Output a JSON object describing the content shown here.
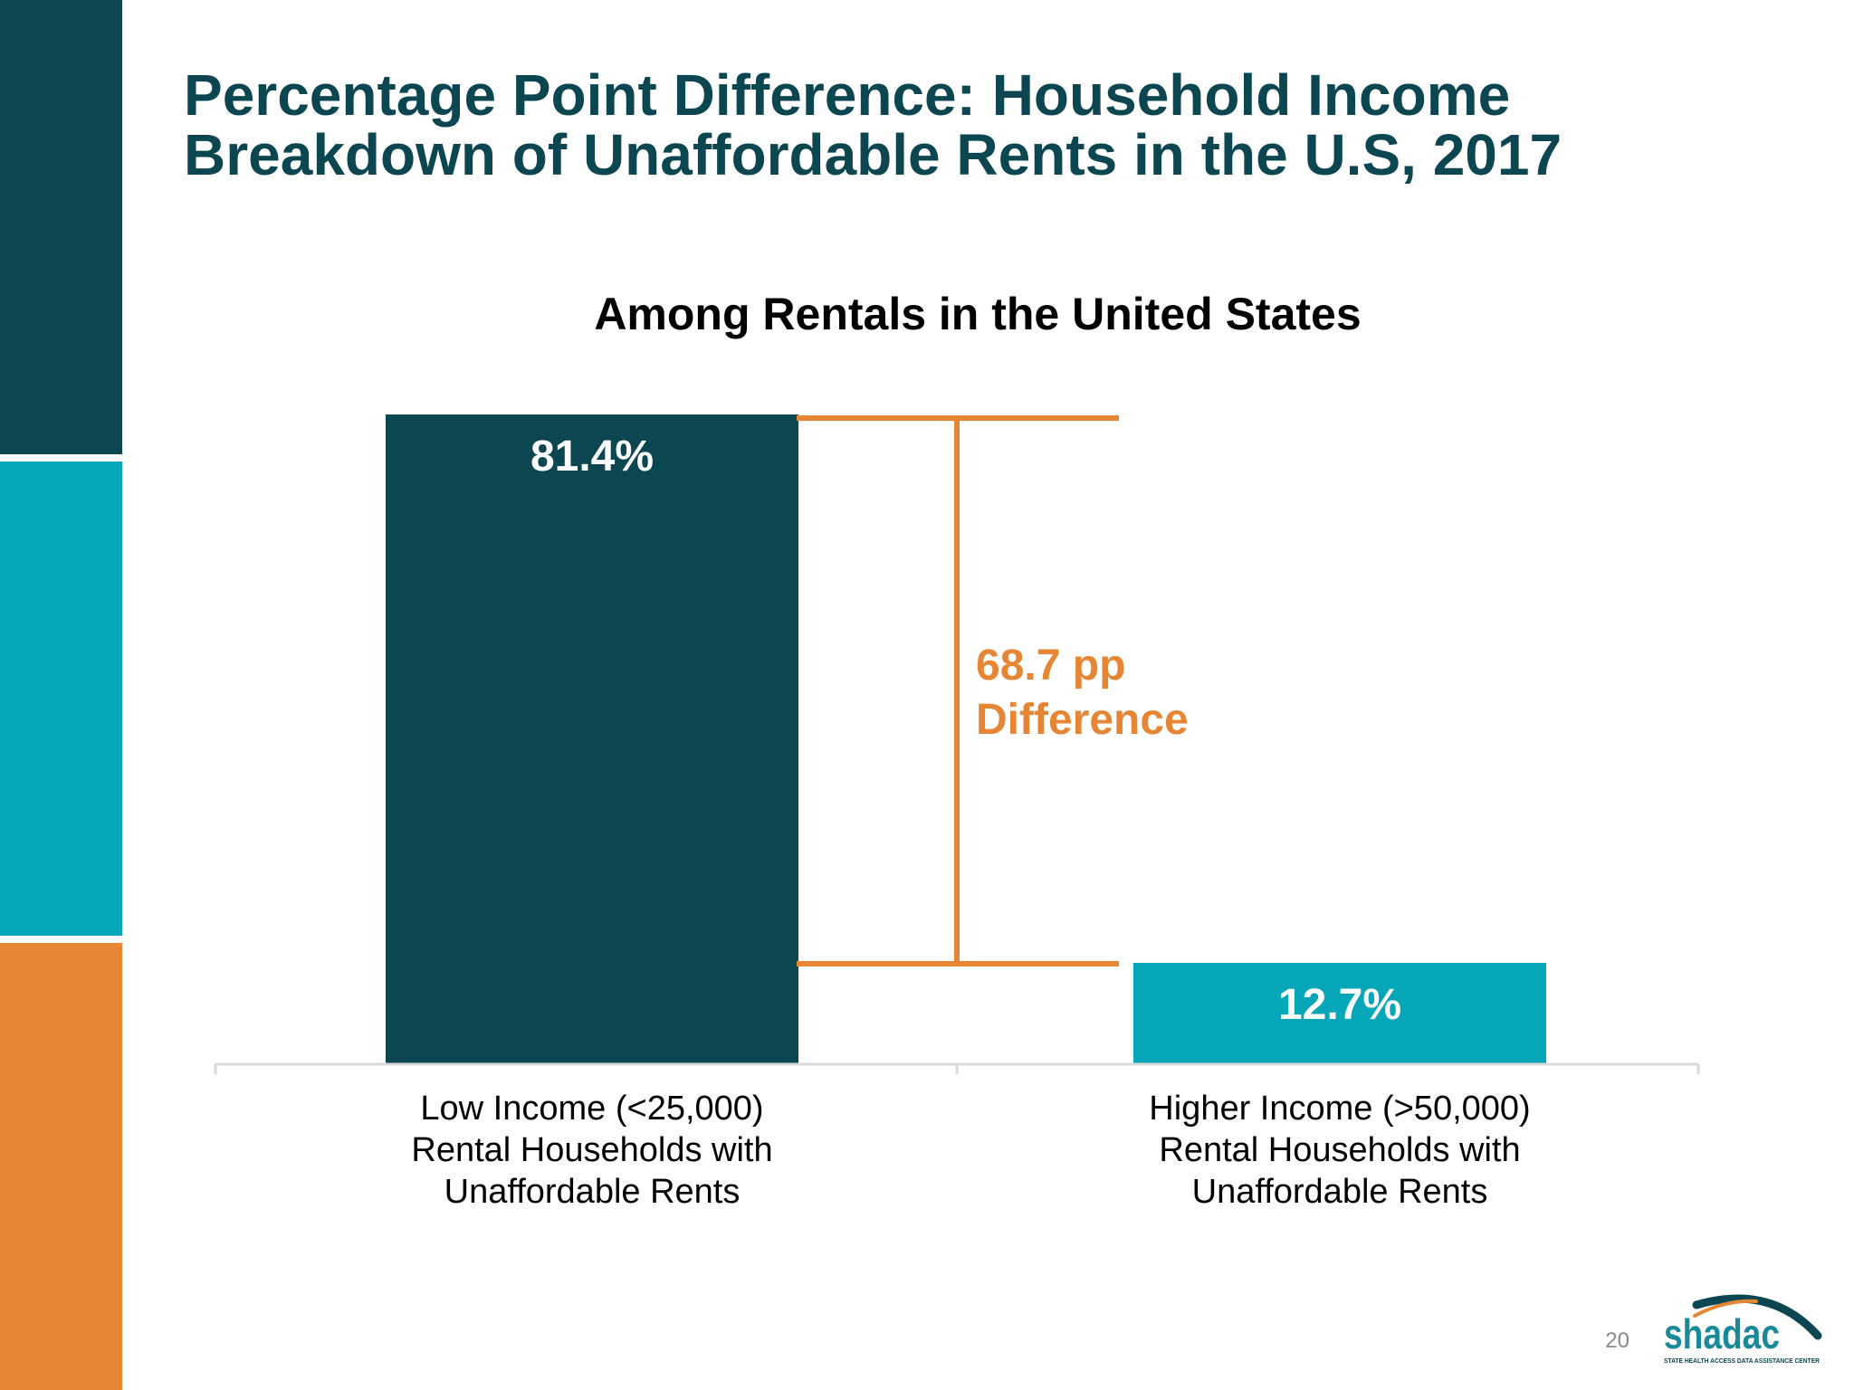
{
  "slide": {
    "title_line1": "Percentage Point Difference: Household Income",
    "title_line2": "Breakdown of Unaffordable Rents in the U.S, 2017",
    "page_number": "20"
  },
  "logo": {
    "name": "shadac",
    "tagline": "STATE HEALTH ACCESS DATA ASSISTANCE CENTER"
  },
  "colors": {
    "dark_teal": "#0b4651",
    "teal": "#04a6b8",
    "orange": "#e68634",
    "axis": "#d9d9d9"
  },
  "chart_data": {
    "type": "bar",
    "title": "Among Rentals in the United States",
    "categories": [
      [
        "Low Income (<25,000)",
        "Rental Households with",
        "Unaffordable Rents"
      ],
      [
        "Higher Income (>50,000)",
        "Rental Households with",
        "Unaffordable Rents"
      ]
    ],
    "values": [
      81.4,
      12.7
    ],
    "value_labels": [
      "81.4%",
      "12.7%"
    ],
    "bar_colors": [
      "#0b4651",
      "#04a6b8"
    ],
    "ylim": [
      0,
      81.4
    ],
    "grid": false,
    "legend": "none",
    "annotation": {
      "value": 68.7,
      "line1": "68.7 pp",
      "line2": "Difference",
      "color": "#e68634"
    }
  }
}
